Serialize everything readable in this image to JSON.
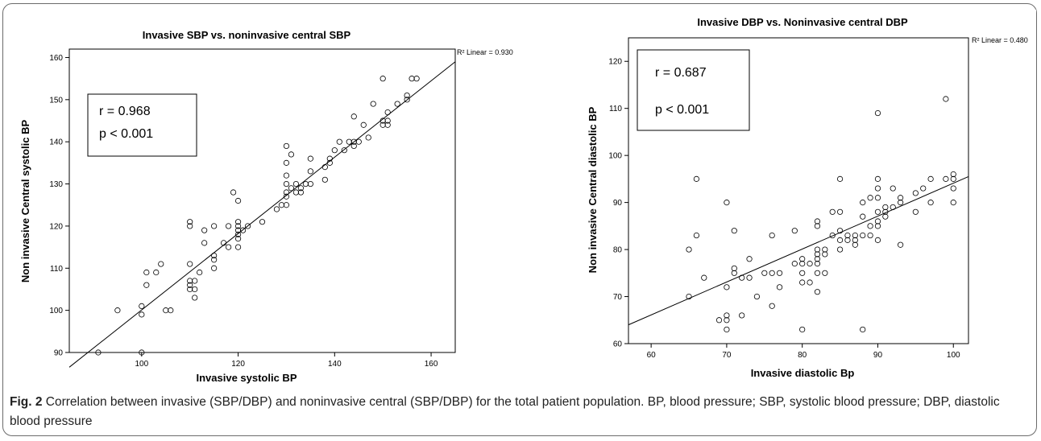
{
  "chart_data": [
    {
      "type": "scatter",
      "title": "Invasive SBP vs. noninvasive central SBP",
      "xlabel": "Invasive systolic  BP",
      "ylabel": "Non invasive Central systolic  BP",
      "xlim": [
        85,
        165
      ],
      "ylim": [
        90,
        162
      ],
      "xticks": [
        100,
        120,
        140,
        160
      ],
      "yticks": [
        90,
        100,
        110,
        120,
        130,
        140,
        150,
        160
      ],
      "grid": false,
      "r2_label": "R² Linear = 0.930",
      "stats": [
        "r = 0.968",
        "p < 0.001"
      ],
      "fit_line": [
        [
          85,
          86.5
        ],
        [
          165,
          159
        ]
      ],
      "points": [
        [
          91,
          90
        ],
        [
          95,
          100
        ],
        [
          100,
          101
        ],
        [
          100,
          99
        ],
        [
          100,
          90
        ],
        [
          101,
          106
        ],
        [
          101,
          109
        ],
        [
          103,
          109
        ],
        [
          104,
          111
        ],
        [
          105,
          100
        ],
        [
          106,
          100
        ],
        [
          110,
          121
        ],
        [
          110,
          120
        ],
        [
          110,
          111
        ],
        [
          110,
          107
        ],
        [
          110,
          106
        ],
        [
          110,
          105
        ],
        [
          111,
          107
        ],
        [
          111,
          105
        ],
        [
          111,
          103
        ],
        [
          112,
          109
        ],
        [
          113,
          119
        ],
        [
          113,
          116
        ],
        [
          115,
          120
        ],
        [
          115,
          113
        ],
        [
          115,
          112
        ],
        [
          115,
          110
        ],
        [
          117,
          116
        ],
        [
          118,
          120
        ],
        [
          118,
          115
        ],
        [
          119,
          128
        ],
        [
          120,
          126
        ],
        [
          120,
          121
        ],
        [
          120,
          120
        ],
        [
          120,
          119
        ],
        [
          120,
          118
        ],
        [
          120,
          117
        ],
        [
          120,
          115
        ],
        [
          121,
          119
        ],
        [
          122,
          120
        ],
        [
          125,
          121
        ],
        [
          128,
          124
        ],
        [
          129,
          125
        ],
        [
          130,
          139
        ],
        [
          130,
          135
        ],
        [
          130,
          132
        ],
        [
          130,
          130
        ],
        [
          130,
          128
        ],
        [
          130,
          127
        ],
        [
          130,
          125
        ],
        [
          131,
          137
        ],
        [
          131,
          129
        ],
        [
          132,
          130
        ],
        [
          132,
          128
        ],
        [
          133,
          129
        ],
        [
          133,
          128
        ],
        [
          134,
          130
        ],
        [
          135,
          136
        ],
        [
          135,
          133
        ],
        [
          135,
          130
        ],
        [
          138,
          134
        ],
        [
          138,
          131
        ],
        [
          139,
          136
        ],
        [
          139,
          135
        ],
        [
          140,
          138
        ],
        [
          141,
          140
        ],
        [
          142,
          138
        ],
        [
          143,
          140
        ],
        [
          144,
          146
        ],
        [
          144,
          140
        ],
        [
          144,
          139
        ],
        [
          145,
          140
        ],
        [
          146,
          144
        ],
        [
          147,
          141
        ],
        [
          148,
          149
        ],
        [
          150,
          155
        ],
        [
          150,
          145
        ],
        [
          150,
          144
        ],
        [
          151,
          147
        ],
        [
          151,
          145
        ],
        [
          151,
          144
        ],
        [
          153,
          149
        ],
        [
          155,
          151
        ],
        [
          155,
          150
        ],
        [
          156,
          155
        ],
        [
          157,
          155
        ]
      ]
    },
    {
      "type": "scatter",
      "title": "Invasive DBP vs. Noninvasive central DBP",
      "xlabel": "Invasive diastolic  Bp",
      "ylabel": "Non invasive Central diastolic  BP",
      "xlim": [
        57,
        102
      ],
      "ylim": [
        60,
        125
      ],
      "xticks": [
        60,
        70,
        80,
        90,
        100
      ],
      "yticks": [
        60,
        70,
        80,
        90,
        100,
        110,
        120
      ],
      "grid": false,
      "r2_label": "R² Linear = 0.480",
      "stats": [
        "r = 0.687",
        "p < 0.001"
      ],
      "fit_line": [
        [
          57,
          64
        ],
        [
          102,
          95.5
        ]
      ],
      "points": [
        [
          65,
          80
        ],
        [
          65,
          70
        ],
        [
          66,
          95
        ],
        [
          66,
          83
        ],
        [
          67,
          74
        ],
        [
          69,
          65
        ],
        [
          70,
          90
        ],
        [
          70,
          72
        ],
        [
          70,
          66
        ],
        [
          70,
          65
        ],
        [
          70,
          63
        ],
        [
          71,
          84
        ],
        [
          71,
          76
        ],
        [
          71,
          75
        ],
        [
          72,
          74
        ],
        [
          72,
          66
        ],
        [
          73,
          78
        ],
        [
          73,
          74
        ],
        [
          74,
          70
        ],
        [
          75,
          75
        ],
        [
          76,
          83
        ],
        [
          76,
          75
        ],
        [
          76,
          68
        ],
        [
          77,
          75
        ],
        [
          77,
          72
        ],
        [
          79,
          84
        ],
        [
          79,
          77
        ],
        [
          80,
          78
        ],
        [
          80,
          77
        ],
        [
          80,
          75
        ],
        [
          80,
          73
        ],
        [
          80,
          63
        ],
        [
          81,
          77
        ],
        [
          81,
          73
        ],
        [
          82,
          86
        ],
        [
          82,
          85
        ],
        [
          82,
          80
        ],
        [
          82,
          79
        ],
        [
          82,
          78
        ],
        [
          82,
          77
        ],
        [
          82,
          75
        ],
        [
          82,
          71
        ],
        [
          83,
          80
        ],
        [
          83,
          79
        ],
        [
          83,
          75
        ],
        [
          84,
          88
        ],
        [
          84,
          83
        ],
        [
          85,
          95
        ],
        [
          85,
          88
        ],
        [
          85,
          84
        ],
        [
          85,
          82
        ],
        [
          85,
          80
        ],
        [
          86,
          83
        ],
        [
          86,
          82
        ],
        [
          87,
          83
        ],
        [
          87,
          82
        ],
        [
          87,
          81
        ],
        [
          88,
          90
        ],
        [
          88,
          87
        ],
        [
          88,
          83
        ],
        [
          88,
          63
        ],
        [
          89,
          91
        ],
        [
          89,
          85
        ],
        [
          89,
          83
        ],
        [
          90,
          109
        ],
        [
          90,
          95
        ],
        [
          90,
          93
        ],
        [
          90,
          91
        ],
        [
          90,
          88
        ],
        [
          90,
          86
        ],
        [
          90,
          85
        ],
        [
          90,
          82
        ],
        [
          91,
          89
        ],
        [
          91,
          88
        ],
        [
          91,
          87
        ],
        [
          92,
          93
        ],
        [
          92,
          89
        ],
        [
          93,
          91
        ],
        [
          93,
          90
        ],
        [
          93,
          81
        ],
        [
          95,
          92
        ],
        [
          95,
          88
        ],
        [
          96,
          93
        ],
        [
          97,
          95
        ],
        [
          97,
          90
        ],
        [
          99,
          112
        ],
        [
          99,
          95
        ],
        [
          100,
          96
        ],
        [
          100,
          95
        ],
        [
          100,
          93
        ],
        [
          100,
          90
        ]
      ]
    }
  ],
  "caption": {
    "lead": "Fig. 2",
    "text": " Correlation between invasive (SBP/DBP) and noninvasive central (SBP/DBP) for the total patient population. BP, blood pressure; SBP, systolic blood pressure; DBP, diastolic blood pressure"
  }
}
